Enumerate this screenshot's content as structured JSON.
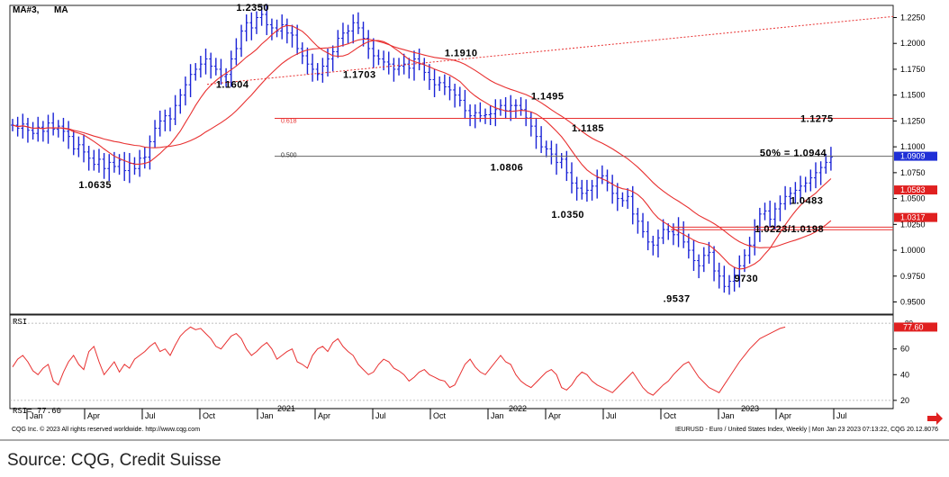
{
  "source_text": "Source: CQG, Credit Suisse",
  "chart_data": {
    "type": "candlestick",
    "header_left": "MA#3,",
    "header_left2": "MA",
    "instrument_text": "IEURUSD - Euro / United States Index, Weekly | Mon Jan 23 2023 07:13:22, CQG 20.12.8076",
    "copyright_text": "CQG Inc. © 2023 All rights reserved worldwide. http://www.cqg.com",
    "year_labels": [
      "2021",
      "2022",
      "2023"
    ],
    "month_labels": [
      "Jan",
      "Apr",
      "Jul",
      "Oct",
      "Jan",
      "Apr",
      "Jul",
      "Oct",
      "Jan",
      "Apr",
      "Jul",
      "Oct",
      "Jan",
      "Apr",
      "Jul"
    ],
    "price_ylim": [
      0.94,
      1.235
    ],
    "price_ticks": [
      "1.2250",
      "1.2000",
      "1.1750",
      "1.1500",
      "1.1250",
      "1.1000",
      "1.0750",
      "1.0500",
      "1.0250",
      "1.0000",
      "0.9750",
      "0.9500"
    ],
    "price_tick_values": [
      1.225,
      1.2,
      1.175,
      1.15,
      1.125,
      1.1,
      1.075,
      1.05,
      1.025,
      1.0,
      0.975,
      0.95
    ],
    "current_price_label": "1.0909",
    "current_price": 1.0909,
    "red_tags": [
      {
        "label": "1.0583",
        "value": 1.0583
      },
      {
        "label": "1.0317",
        "value": 1.0317
      }
    ],
    "annotations": [
      {
        "text": "1.2350",
        "x": 44,
        "y": 1.235
      },
      {
        "text": "1.1604",
        "x": 40,
        "y": 1.1604
      },
      {
        "text": "1.1703",
        "x": 65,
        "y": 1.1703
      },
      {
        "text": "1.1910",
        "x": 85,
        "y": 1.191
      },
      {
        "text": "1.1495",
        "x": 102,
        "y": 1.1495
      },
      {
        "text": "1.1185",
        "x": 110,
        "y": 1.1185
      },
      {
        "text": "1.0806",
        "x": 94,
        "y": 1.0806
      },
      {
        "text": "1.0635",
        "x": 13,
        "y": 1.0635
      },
      {
        "text": "1.0350",
        "x": 106,
        "y": 1.035
      },
      {
        "text": "1.1275",
        "x": 155,
        "y": 1.1275
      },
      {
        "text": "50%  =  1.0944",
        "x": 147,
        "y": 1.0944
      },
      {
        "text": "1.0483",
        "x": 153,
        "y": 1.0483
      },
      {
        "text": "1.0223/1.0198",
        "x": 146,
        "y": 1.021
      },
      {
        "text": "9730",
        "x": 142,
        "y": 0.973
      },
      {
        "text": ".9537",
        "x": 128,
        "y": 0.9537
      }
    ],
    "fib_levels": [
      {
        "label": "0.618",
        "value": 1.1275
      },
      {
        "label": "0.500",
        "value": 1.0944
      }
    ],
    "rsi_label": "RSI",
    "rsi_value_label": "RSI=    77.60",
    "rsi_current_tag": "77.60",
    "rsi_ylim": [
      15,
      85
    ],
    "rsi_ticks": [
      "60",
      "40",
      "20"
    ],
    "rsi_tick_values": [
      60,
      40,
      20
    ],
    "rsi_top_tick": "80",
    "weeks_x_start": 0,
    "x_range": [
      0,
      172
    ],
    "close_series": [
      1.121,
      1.118,
      1.122,
      1.116,
      1.113,
      1.119,
      1.115,
      1.123,
      1.117,
      1.12,
      1.115,
      1.11,
      1.098,
      1.102,
      1.095,
      1.089,
      1.083,
      1.088,
      1.079,
      1.085,
      1.081,
      1.087,
      1.077,
      1.084,
      1.079,
      1.089,
      1.09,
      1.105,
      1.118,
      1.125,
      1.13,
      1.127,
      1.14,
      1.15,
      1.16,
      1.17,
      1.175,
      1.18,
      1.185,
      1.178,
      1.175,
      1.168,
      1.17,
      1.185,
      1.195,
      1.212,
      1.22,
      1.215,
      1.225,
      1.228,
      1.218,
      1.215,
      1.212,
      1.218,
      1.21,
      1.208,
      1.195,
      1.188,
      1.18,
      1.175,
      1.17,
      1.178,
      1.185,
      1.192,
      1.205,
      1.21,
      1.212,
      1.22,
      1.215,
      1.205,
      1.195,
      1.188,
      1.185,
      1.182,
      1.18,
      1.175,
      1.178,
      1.18,
      1.176,
      1.185,
      1.18,
      1.172,
      1.165,
      1.16,
      1.162,
      1.158,
      1.155,
      1.15,
      1.145,
      1.135,
      1.13,
      1.133,
      1.13,
      1.131,
      1.132,
      1.136,
      1.14,
      1.135,
      1.14,
      1.14,
      1.136,
      1.128,
      1.12,
      1.11,
      1.1,
      1.098,
      1.093,
      1.085,
      1.088,
      1.075,
      1.065,
      1.06,
      1.055,
      1.058,
      1.062,
      1.07,
      1.072,
      1.065,
      1.055,
      1.05,
      1.048,
      1.052,
      1.035,
      1.028,
      1.018,
      1.008,
      1.005,
      1.012,
      1.02,
      1.018,
      1.015,
      1.022,
      1.008,
      1.0,
      0.99,
      0.985,
      0.995,
      0.998,
      0.98,
      0.975,
      0.965,
      0.97,
      0.976,
      0.985,
      0.995,
      1.005,
      1.02,
      1.035,
      1.038,
      1.03,
      1.04,
      1.045,
      1.052,
      1.055,
      1.058,
      1.062,
      1.065,
      1.07,
      1.075,
      1.08,
      1.085,
      1.09
    ],
    "rsi_series": [
      46,
      52,
      55,
      50,
      43,
      40,
      45,
      48,
      35,
      32,
      42,
      50,
      55,
      48,
      44,
      58,
      62,
      50,
      40,
      45,
      50,
      42,
      48,
      45,
      52,
      55,
      58,
      62,
      65,
      58,
      60,
      55,
      63,
      70,
      74,
      77,
      75,
      76,
      72,
      68,
      62,
      60,
      65,
      70,
      72,
      68,
      60,
      55,
      58,
      62,
      65,
      60,
      52,
      55,
      58,
      60,
      50,
      48,
      45,
      55,
      60,
      62,
      58,
      65,
      68,
      62,
      58,
      55,
      48,
      44,
      40,
      42,
      48,
      52,
      50,
      45,
      43,
      40,
      35,
      38,
      42,
      44,
      40,
      38,
      36,
      35,
      30,
      32,
      40,
      48,
      52,
      46,
      42,
      40,
      45,
      50,
      55,
      50,
      48,
      40,
      35,
      32,
      30,
      34,
      38,
      42,
      44,
      40,
      30,
      28,
      32,
      38,
      42,
      40,
      35,
      32,
      30,
      28,
      26,
      30,
      34,
      38,
      42,
      36,
      30,
      26,
      24,
      28,
      32,
      35,
      40,
      44,
      48,
      50,
      44,
      38,
      34,
      30,
      28,
      26,
      32,
      38,
      44,
      50,
      55,
      60,
      64,
      68,
      70,
      72,
      74,
      76,
      77
    ]
  }
}
